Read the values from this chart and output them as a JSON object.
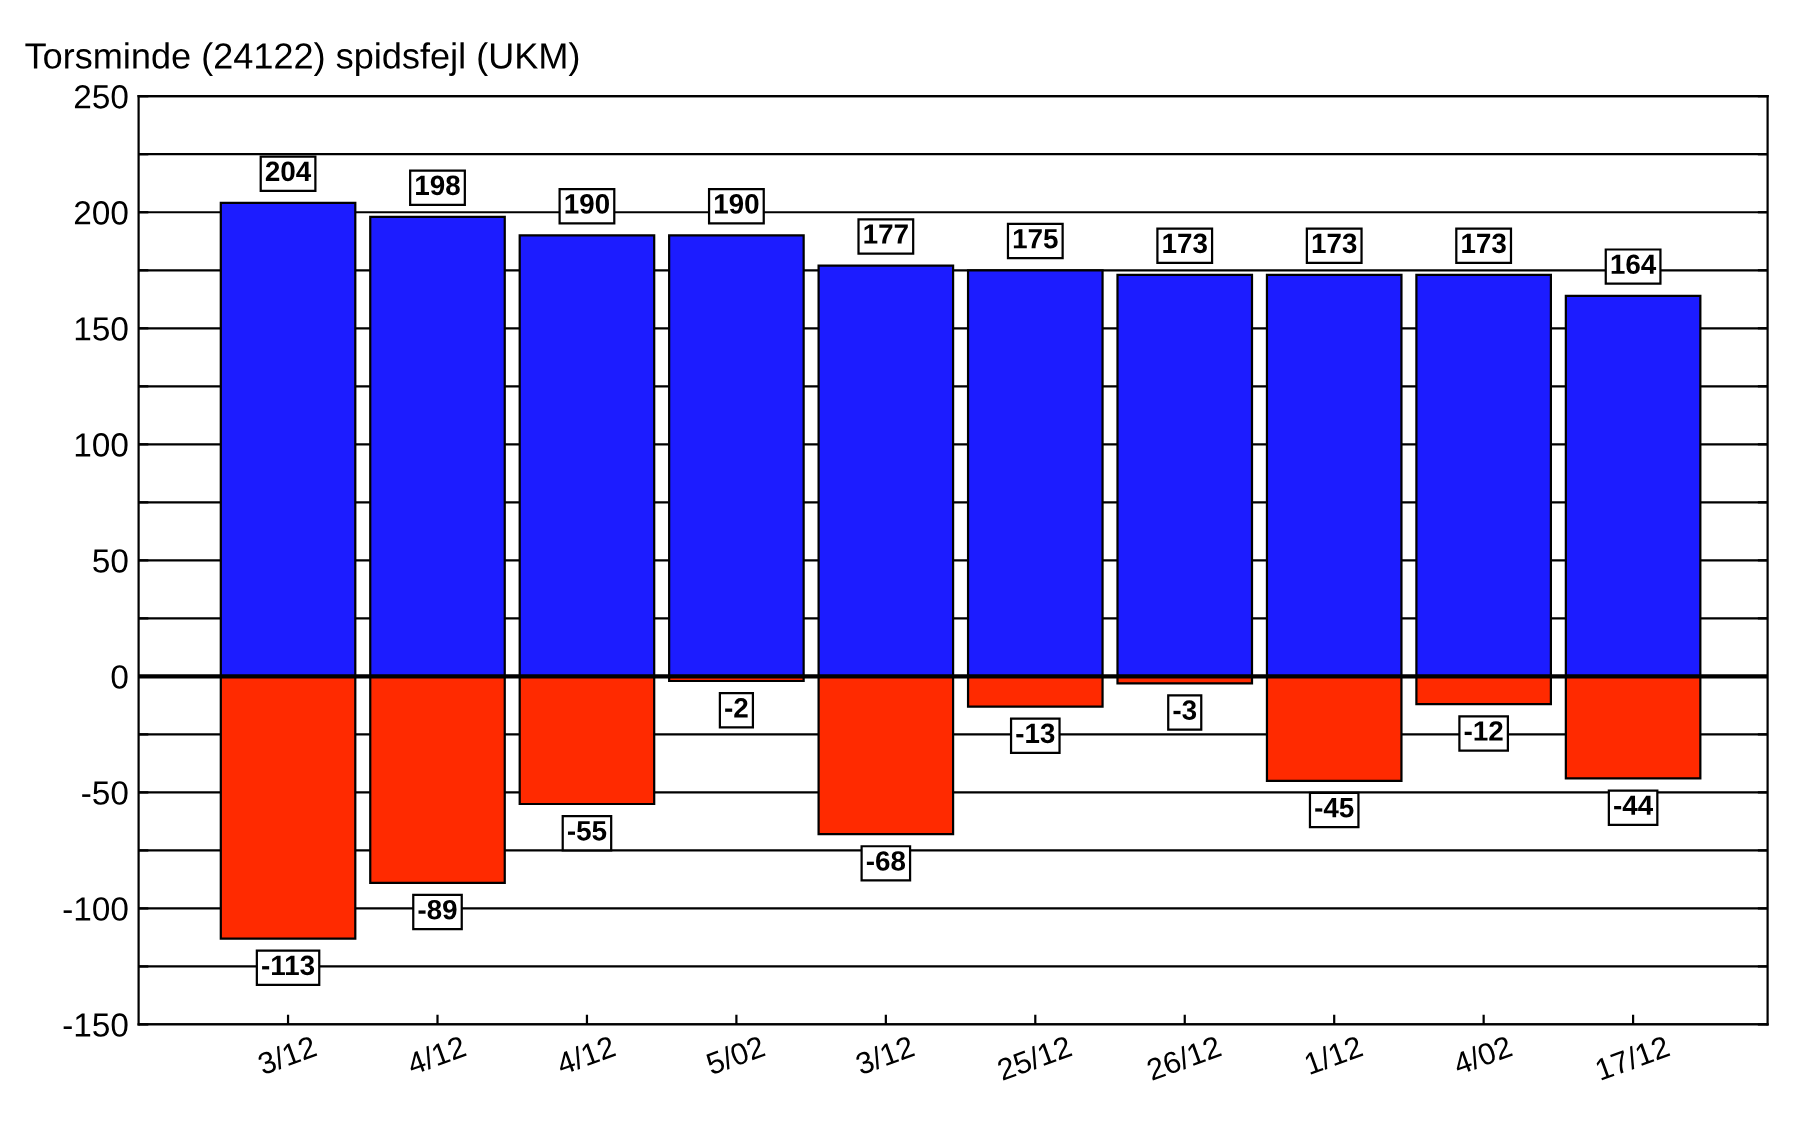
{
  "chart_data": {
    "type": "bar",
    "title": "Torsminde (24122) spidsfejl (UKM)",
    "categories": [
      "3/12",
      "4/12",
      "4/12",
      "5/02",
      "3/12",
      "25/12",
      "26/12",
      "1/12",
      "4/02",
      "17/12"
    ],
    "series": [
      {
        "color": "#1c1cff",
        "values": [
          204,
          198,
          190,
          190,
          177,
          175,
          173,
          173,
          173,
          164
        ]
      },
      {
        "color": "#ff2a00",
        "values": [
          -113,
          -89,
          -55,
          -2,
          -68,
          -13,
          -3,
          -45,
          -12,
          -44
        ]
      }
    ],
    "stacked": true,
    "data_labels": true,
    "grid": "y",
    "ylim": [
      -150,
      250
    ],
    "yticks": [
      -150,
      {
        "value": -125,
        "label": null
      },
      -100,
      {
        "value": -75,
        "label": null
      },
      -50,
      {
        "value": -25,
        "label": null
      },
      0,
      {
        "value": 25,
        "label": null
      },
      50,
      {
        "value": 75,
        "label": null
      },
      100,
      {
        "value": 125,
        "label": null
      },
      150,
      {
        "value": 175,
        "label": null
      },
      200,
      {
        "value": 225,
        "label": null
      },
      250
    ]
  }
}
